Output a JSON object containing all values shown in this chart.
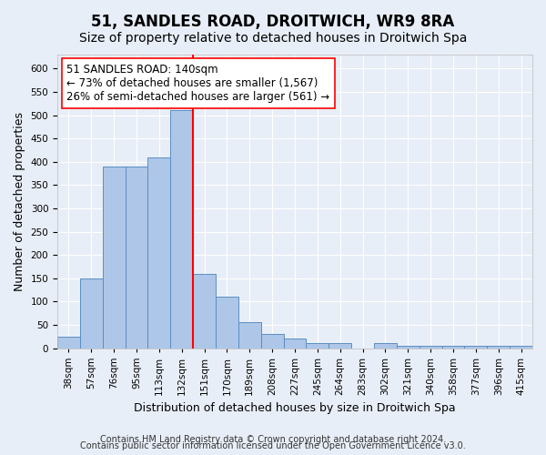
{
  "title1": "51, SANDLES ROAD, DROITWICH, WR9 8RA",
  "title2": "Size of property relative to detached houses in Droitwich Spa",
  "xlabel": "Distribution of detached houses by size in Droitwich Spa",
  "ylabel": "Number of detached properties",
  "footnote1": "Contains HM Land Registry data © Crown copyright and database right 2024.",
  "footnote2": "Contains public sector information licensed under the Open Government Licence v3.0.",
  "bin_labels": [
    "38sqm",
    "57sqm",
    "76sqm",
    "95sqm",
    "113sqm",
    "132sqm",
    "151sqm",
    "170sqm",
    "189sqm",
    "208sqm",
    "227sqm",
    "245sqm",
    "264sqm",
    "283sqm",
    "302sqm",
    "321sqm",
    "340sqm",
    "358sqm",
    "377sqm",
    "396sqm",
    "415sqm"
  ],
  "bar_heights": [
    25,
    150,
    390,
    390,
    410,
    510,
    160,
    110,
    55,
    30,
    20,
    10,
    10,
    0,
    10,
    5,
    5,
    5,
    5,
    5,
    5
  ],
  "bar_color": "#aec6e8",
  "bar_edge_color": "#5a8fc2",
  "vline_x": 5.5,
  "vline_color": "red",
  "annotation_title": "51 SANDLES ROAD: 140sqm",
  "annotation_line1": "← 73% of detached houses are smaller (1,567)",
  "annotation_line2": "26% of semi-detached houses are larger (561) →",
  "annotation_box_color": "white",
  "annotation_box_edge": "red",
  "ylim": [
    0,
    630
  ],
  "yticks": [
    0,
    50,
    100,
    150,
    200,
    250,
    300,
    350,
    400,
    450,
    500,
    550,
    600
  ],
  "background_color": "#e8eef7",
  "plot_bg_color": "#e8eef7",
  "grid_color": "white",
  "title1_fontsize": 12,
  "title2_fontsize": 10,
  "xlabel_fontsize": 9,
  "ylabel_fontsize": 9,
  "tick_fontsize": 7.5,
  "annotation_fontsize": 8.5,
  "footnote_fontsize": 7
}
